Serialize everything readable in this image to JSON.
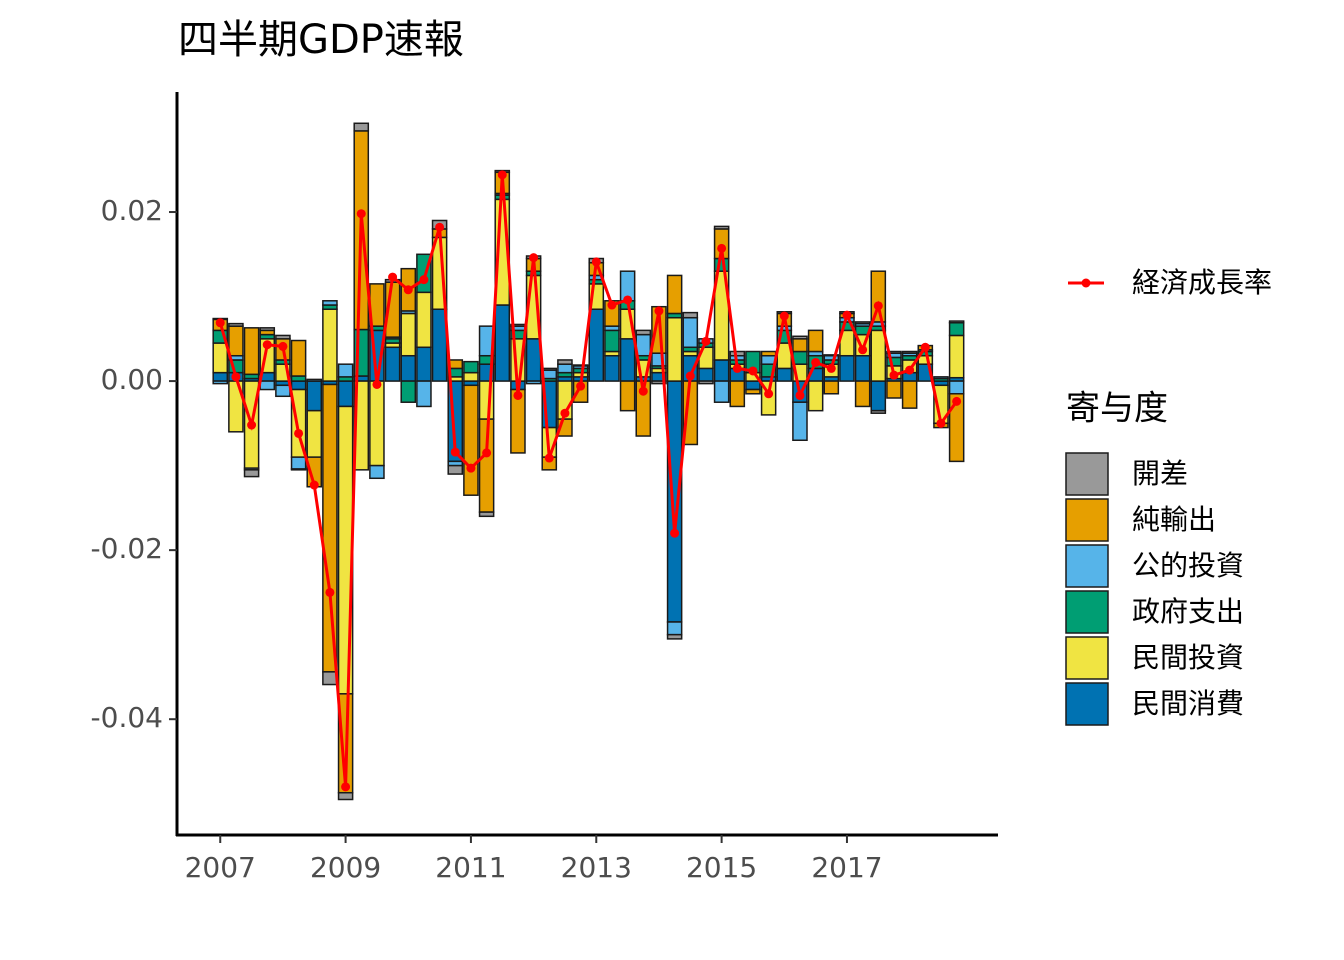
{
  "chart_data": {
    "type": "bar",
    "title": "四半期GDP速報",
    "legend_title": "寄与度",
    "x": [
      2007,
      2007.25,
      2007.5,
      2007.75,
      2008,
      2008.25,
      2008.5,
      2008.75,
      2009,
      2009.25,
      2009.5,
      2009.75,
      2010,
      2010.25,
      2010.5,
      2010.75,
      2011,
      2011.25,
      2011.5,
      2011.75,
      2012,
      2012.25,
      2012.5,
      2012.75,
      2013,
      2013.25,
      2013.5,
      2013.75,
      2014,
      2014.25,
      2014.5,
      2014.75,
      2015,
      2015.25,
      2015.5,
      2015.75,
      2016,
      2016.25,
      2016.5,
      2016.75,
      2017,
      2017.25,
      2017.5,
      2017.75,
      2018,
      2018.25,
      2018.5,
      2018.75
    ],
    "xlim": [
      2006.31,
      2019.41
    ],
    "xticks": [
      2007,
      2009,
      2011,
      2013,
      2015,
      2017
    ],
    "ylim": [
      -0.0537,
      0.0342
    ],
    "yticks": [
      -0.04,
      -0.02,
      {
        "value": 0,
        "label": "0.00"
      },
      0.02
    ],
    "series": [
      {
        "name": "開差",
        "color": "#999999",
        "values": [
          0.0001,
          0.0003,
          -0.0008,
          0.0003,
          0.0004,
          -0.0001,
          0,
          -0.0015,
          -0.0008,
          0.0009,
          0,
          0.0003,
          0,
          0,
          0.001,
          -0.001,
          0,
          -0.0005,
          0.0002,
          0.0002,
          0.0003,
          0.0002,
          0.0005,
          0.0001,
          0.0005,
          0,
          0,
          0.0005,
          -0.0003,
          -0.0005,
          0.0006,
          -0.0003,
          0.0003,
          0.0005,
          0,
          0,
          0.0002,
          0.0003,
          0,
          0.0001,
          0.0002,
          0.0002,
          -0.0003,
          0.0002,
          0.0002,
          0,
          0,
          0.0002
        ]
      },
      {
        "name": "純輸出",
        "color": "#E69F00",
        "values": [
          0.0013,
          0.0035,
          0.0055,
          0.0005,
          0.0025,
          0.0042,
          -0.0035,
          -0.034,
          -0.0117,
          0.0235,
          0.005,
          0.0065,
          0.005,
          0,
          0.001,
          0.001,
          -0.013,
          -0.011,
          0.0025,
          -0.0075,
          0.0015,
          -0.0015,
          -0.002,
          -0.0025,
          0.0015,
          0.003,
          -0.0035,
          -0.0065,
          0.0055,
          0.0045,
          -0.0075,
          0,
          0.0035,
          -0.003,
          -0.0005,
          0.0005,
          0.0015,
          0.0015,
          0.0025,
          -0.0015,
          0.0005,
          -0.003,
          0.006,
          -0.002,
          -0.0032,
          0.0005,
          -0.0005,
          -0.008
        ]
      },
      {
        "name": "公的投資",
        "color": "#56B4E9",
        "values": [
          -0.0003,
          0.0005,
          -0.0002,
          -0.001,
          -0.0013,
          -0.0014,
          0.0002,
          0.0005,
          0.0015,
          0,
          -0.0015,
          0.0002,
          0.0003,
          -0.003,
          0,
          -0.0005,
          0,
          0.0035,
          0.0002,
          0.0005,
          -0.0003,
          0.001,
          0.001,
          0.0003,
          0.0005,
          0.0005,
          0.0035,
          0.0025,
          0.0015,
          -0.0015,
          0.0035,
          0.0005,
          -0.0025,
          0.0005,
          0,
          0.001,
          0.0005,
          -0.0045,
          0.0005,
          0.0005,
          0.0005,
          0.0003,
          0.0005,
          0.0005,
          0.0003,
          0.0002,
          0.0002,
          -0.0015
        ]
      },
      {
        "name": "政府支出",
        "color": "#009E73",
        "values": [
          0.0015,
          0.0015,
          0.0005,
          0.0005,
          0.0005,
          0.0006,
          0,
          0.0005,
          0.0005,
          0.0055,
          0.0005,
          0.0005,
          -0.0025,
          0.0045,
          0,
          0.001,
          0.0013,
          0.001,
          0.0005,
          0.001,
          0.0005,
          0.0003,
          0.0005,
          0.0005,
          0.0005,
          0.0025,
          0.001,
          0.0005,
          0.0003,
          0.0005,
          0.0005,
          0.0005,
          0.0015,
          0.0005,
          0.0025,
          0.0015,
          0.0015,
          0.0015,
          0.0015,
          0.0005,
          0.001,
          0.001,
          0.0005,
          0.001,
          0.0005,
          0.0005,
          0.0003,
          0.0015
        ]
      },
      {
        "name": "民間投資",
        "color": "#F0E442",
        "values": [
          0.0035,
          -0.006,
          -0.0103,
          0.004,
          0.002,
          -0.008,
          -0.0055,
          0.0085,
          -0.034,
          -0.0105,
          -0.01,
          0.0005,
          0.005,
          0.0065,
          0.0085,
          0.0005,
          0.001,
          -0.0045,
          0.0125,
          0.005,
          0.0075,
          -0.0035,
          -0.0045,
          0.0005,
          0.003,
          0.0005,
          0.0035,
          0.002,
          0.0005,
          0.0075,
          0.0005,
          0.0025,
          0.0105,
          0.0005,
          0.001,
          -0.004,
          0.003,
          0.002,
          -0.0035,
          0.0015,
          0.003,
          0.0025,
          0.006,
          0.0015,
          0.0015,
          0.001,
          -0.0045,
          0.005
        ]
      },
      {
        "name": "民間消費",
        "color": "#0072B2",
        "values": [
          0.001,
          0.001,
          0.0003,
          0.001,
          -0.0005,
          -0.001,
          -0.0035,
          -0.0004,
          -0.003,
          0.0006,
          0.006,
          0.004,
          0.003,
          0.004,
          0.0085,
          -0.0095,
          -0.0005,
          0.002,
          0.009,
          -0.001,
          0.005,
          -0.0055,
          0.0005,
          0.0005,
          0.0085,
          0.003,
          0.005,
          0.0005,
          0.001,
          -0.0285,
          0.003,
          0.0015,
          0.0025,
          0.0015,
          -0.001,
          0.0005,
          0.0015,
          -0.0025,
          0.0015,
          0.0005,
          0.003,
          0.003,
          -0.0035,
          0.0003,
          0.001,
          0.002,
          -0.0005,
          0.0004
        ]
      },
      {
        "name": "経済成長率",
        "type": "line",
        "color": "#FF0000",
        "values": [
          0.0069,
          0.0005,
          -0.0052,
          0.0043,
          0.0041,
          -0.0062,
          -0.0123,
          -0.025,
          -0.048,
          0.0198,
          -0.0004,
          0.0123,
          0.0108,
          0.012,
          0.0182,
          -0.0084,
          -0.0103,
          -0.0085,
          0.0244,
          -0.0017,
          0.0146,
          -0.0091,
          -0.0038,
          -0.0006,
          0.0141,
          0.009,
          0.0096,
          -0.0012,
          0.0083,
          -0.018,
          0.0006,
          0.0047,
          0.0157,
          0.0015,
          0.0012,
          -0.0015,
          0.0077,
          -0.0017,
          0.0022,
          0.0015,
          0.0078,
          0.0037,
          0.0089,
          0.0007,
          0.0013,
          0.004,
          -0.005,
          -0.0024
        ]
      }
    ]
  }
}
